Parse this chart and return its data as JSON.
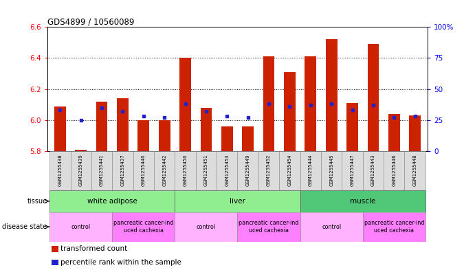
{
  "title": "GDS4899 / 10560089",
  "samples": [
    "GSM1255438",
    "GSM1255439",
    "GSM1255441",
    "GSM1255437",
    "GSM1255440",
    "GSM1255442",
    "GSM1255450",
    "GSM1255451",
    "GSM1255453",
    "GSM1255449",
    "GSM1255452",
    "GSM1255454",
    "GSM1255444",
    "GSM1255445",
    "GSM1255447",
    "GSM1255443",
    "GSM1255446",
    "GSM1255448"
  ],
  "red_values": [
    6.09,
    5.81,
    6.12,
    6.14,
    6.0,
    6.0,
    6.4,
    6.08,
    5.96,
    5.96,
    6.41,
    6.31,
    6.41,
    6.52,
    6.11,
    6.49,
    6.04,
    6.03
  ],
  "blue_percentiles": [
    33,
    25,
    35,
    32,
    28,
    27,
    38,
    32,
    28,
    27,
    38,
    36,
    37,
    38,
    33,
    37,
    27,
    28
  ],
  "ylim_left": [
    5.8,
    6.6
  ],
  "ylim_right": [
    0,
    100
  ],
  "left_yticks": [
    5.8,
    6.0,
    6.2,
    6.4,
    6.6
  ],
  "right_yticks": [
    0,
    25,
    50,
    75,
    100
  ],
  "tissue_groups": [
    {
      "label": "white adipose",
      "start": 0,
      "end": 6,
      "color": "#90EE90"
    },
    {
      "label": "liver",
      "start": 6,
      "end": 12,
      "color": "#90EE90"
    },
    {
      "label": "muscle",
      "start": 12,
      "end": 18,
      "color": "#50C878"
    }
  ],
  "disease_groups": [
    {
      "label": "control",
      "start": 0,
      "end": 3,
      "color": "#FFB3FF"
    },
    {
      "label": "pancreatic cancer-ind\nuced cachexia",
      "start": 3,
      "end": 6,
      "color": "#FF80FF"
    },
    {
      "label": "control",
      "start": 6,
      "end": 9,
      "color": "#FFB3FF"
    },
    {
      "label": "pancreatic cancer-ind\nuced cachexia",
      "start": 9,
      "end": 12,
      "color": "#FF80FF"
    },
    {
      "label": "control",
      "start": 12,
      "end": 15,
      "color": "#FFB3FF"
    },
    {
      "label": "pancreatic cancer-ind\nuced cachexia",
      "start": 15,
      "end": 18,
      "color": "#FF80FF"
    }
  ],
  "bar_color": "#CC2200",
  "dot_color": "#2222CC",
  "base": 5.8,
  "bar_width": 0.55,
  "legend_items": [
    {
      "label": "transformed count",
      "color": "#CC2200"
    },
    {
      "label": "percentile rank within the sample",
      "color": "#2222CC"
    }
  ]
}
